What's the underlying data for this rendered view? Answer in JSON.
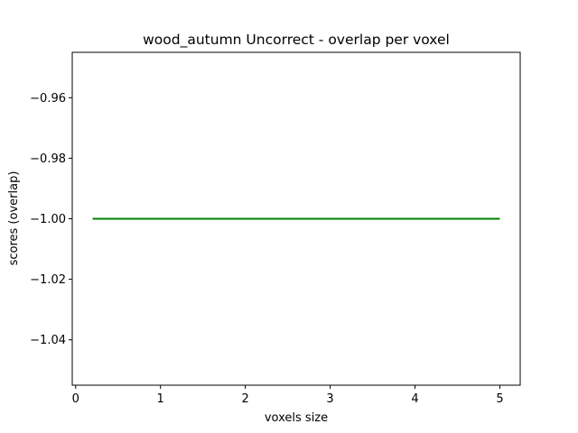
{
  "chart_data": {
    "type": "line",
    "title": "wood_autumn Uncorrect - overlap per voxel",
    "xlabel": "voxels size",
    "ylabel": "scores (overlap)",
    "xlim": [
      -0.04,
      5.24
    ],
    "ylim": [
      -1.055,
      -0.945
    ],
    "x_ticks": [
      {
        "value": 0,
        "label": "0"
      },
      {
        "value": 1,
        "label": "1"
      },
      {
        "value": 2,
        "label": "2"
      },
      {
        "value": 3,
        "label": "3"
      },
      {
        "value": 4,
        "label": "4"
      },
      {
        "value": 5,
        "label": "5"
      }
    ],
    "y_ticks": [
      {
        "value": -0.96,
        "label": "−0.96"
      },
      {
        "value": -0.98,
        "label": "−0.98"
      },
      {
        "value": -1.0,
        "label": "−1.00"
      },
      {
        "value": -1.02,
        "label": "−1.02"
      },
      {
        "value": -1.04,
        "label": "−1.04"
      }
    ],
    "grid": false,
    "series": [
      {
        "color": "#008000",
        "x": [
          0.2,
          5.0
        ],
        "y": [
          -1.0,
          -1.0
        ]
      }
    ]
  }
}
